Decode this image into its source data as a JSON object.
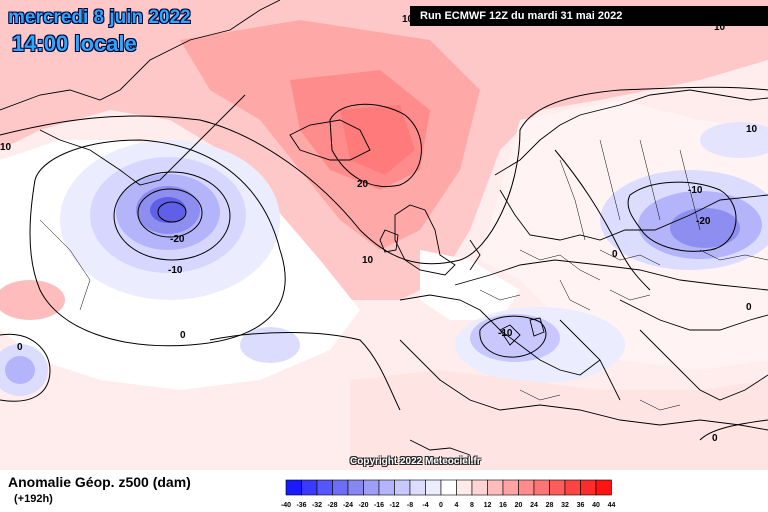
{
  "header": {
    "date": "mercredi 8 juin 2022",
    "time": "14:00 locale",
    "run": "Run ECMWF 12Z du mardi 31 mai 2022"
  },
  "map": {
    "contour_labels": [
      "20",
      "10",
      "10",
      "10",
      "-20",
      "-10",
      "0",
      "-10",
      "-20",
      "0",
      "-10",
      "0",
      "0",
      "10",
      "10",
      "0"
    ]
  },
  "footer": {
    "title": "Anomalie Géop. z500 (dam)",
    "subtitle": "(+192h)",
    "copyright": "Copyright 2022 Meteociel.fr"
  },
  "legend": {
    "values": [
      "-40",
      "-36",
      "-32",
      "-28",
      "-24",
      "-20",
      "-16",
      "-12",
      "-8",
      "-4",
      "0",
      "4",
      "8",
      "12",
      "16",
      "20",
      "24",
      "28",
      "32",
      "36",
      "40",
      "44"
    ],
    "colors": [
      "#1a1aff",
      "#3a3aff",
      "#5656ff",
      "#6e6ef5",
      "#8787f0",
      "#9e9ef5",
      "#b4b4fa",
      "#c8c8ff",
      "#dcdcff",
      "#ececff",
      "#ffffff",
      "#ffeaea",
      "#ffd4d4",
      "#ffbcbc",
      "#ffa4a4",
      "#ff8c8c",
      "#ff7474",
      "#ff5c5c",
      "#ff4444",
      "#ff2c2c",
      "#ff1414"
    ]
  }
}
